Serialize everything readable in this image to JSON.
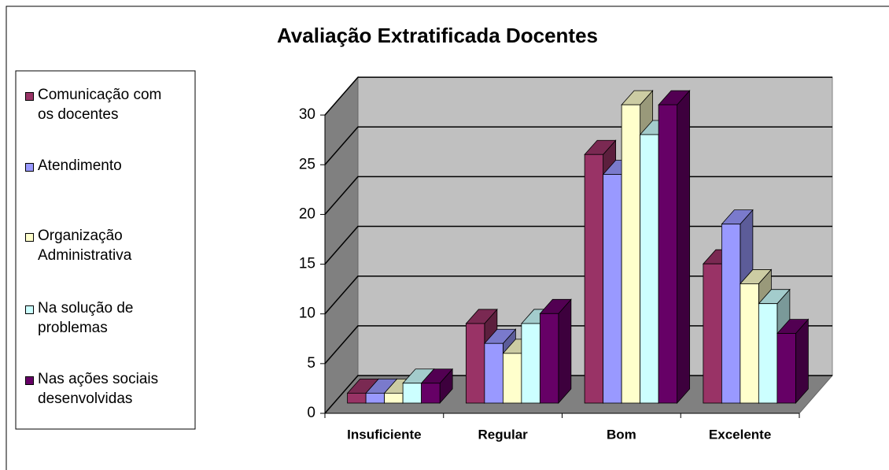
{
  "chart_data": {
    "type": "bar3d",
    "title": "Avaliação Extratificada Docentes",
    "categories": [
      "Insuficiente",
      "Regular",
      "Bom",
      "Excelente"
    ],
    "series": [
      {
        "name": "Comunicação com os docentes",
        "color": "#993366",
        "values": [
          1,
          8,
          25,
          14
        ]
      },
      {
        "name": "Atendimento",
        "color": "#9999ff",
        "values": [
          1,
          6,
          23,
          18
        ]
      },
      {
        "name": "Organização Administrativa",
        "color": "#ffffcc",
        "values": [
          1,
          5,
          30,
          12
        ]
      },
      {
        "name": "Na solução de problemas",
        "color": "#ccffff",
        "values": [
          2,
          8,
          27,
          10
        ]
      },
      {
        "name": "Nas ações sociais desenvolvidas",
        "color": "#660066",
        "values": [
          2,
          9,
          30,
          7
        ]
      }
    ],
    "ylim": [
      0,
      30
    ],
    "yticks": [
      0,
      5,
      10,
      15,
      20,
      25,
      30
    ],
    "grid": true,
    "legend": "left"
  }
}
